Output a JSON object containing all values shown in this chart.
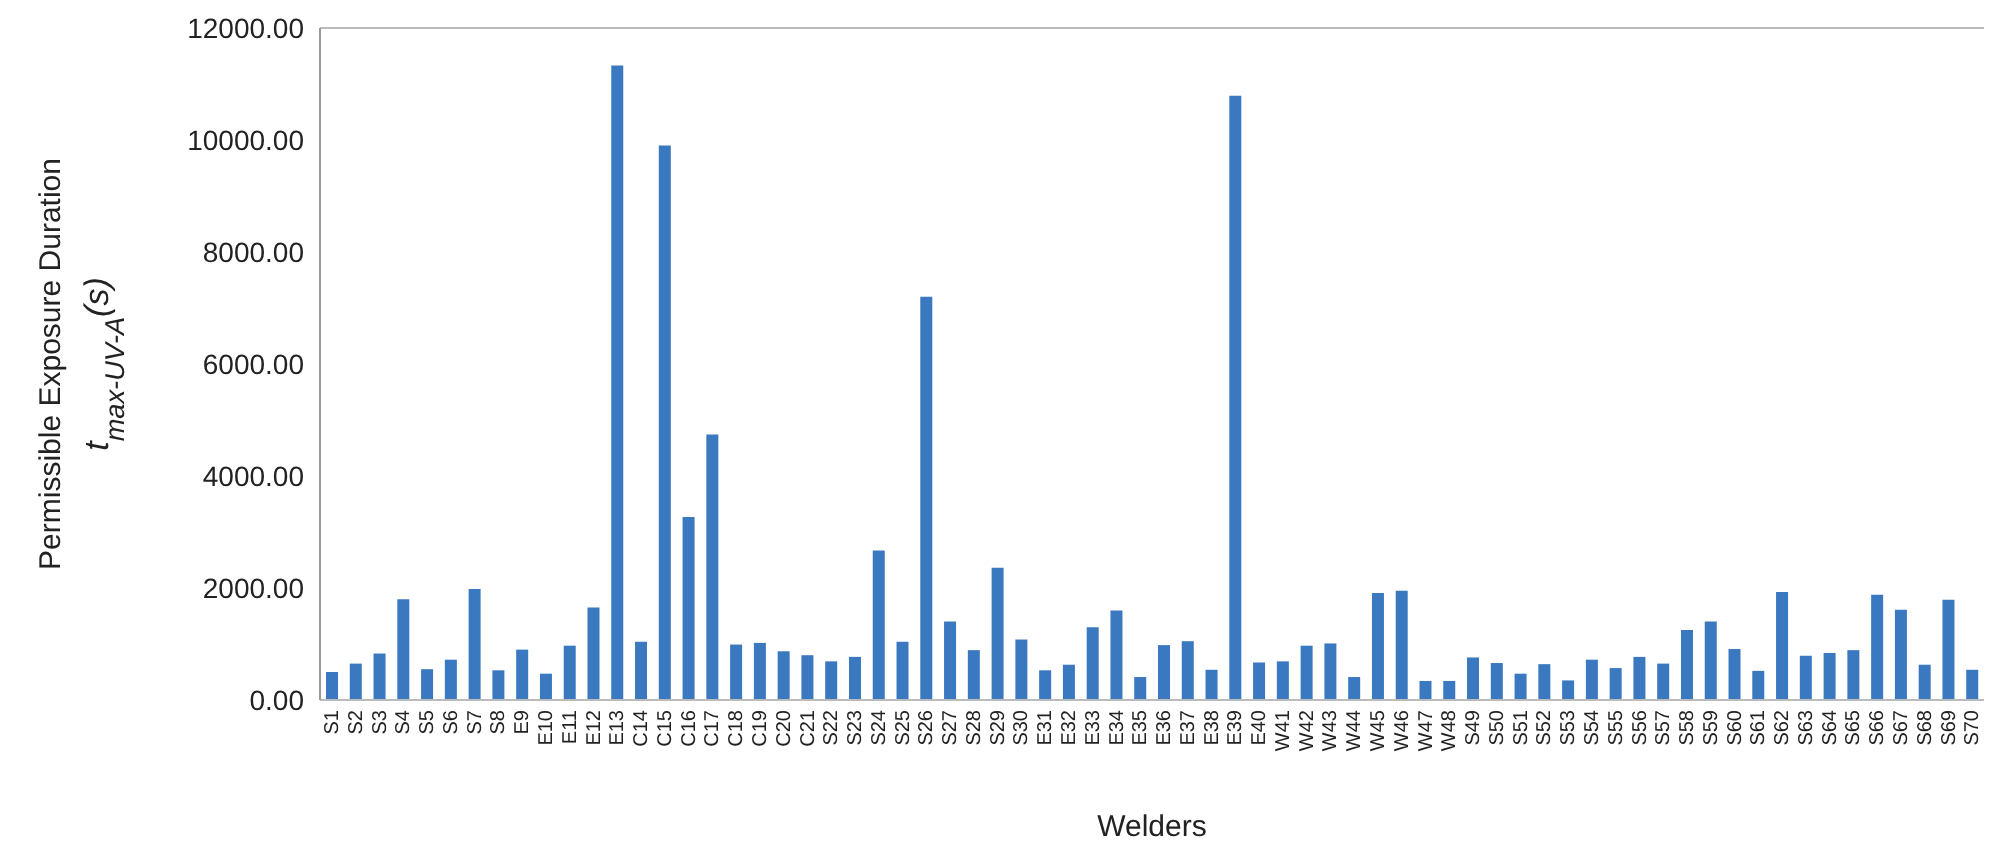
{
  "chart_data": {
    "type": "bar",
    "xlabel": "Welders",
    "ylabel": "Permissible Exposure Duration\nt$_{max-UV-A}$(s)",
    "categories": [
      "S1",
      "S2",
      "S3",
      "S4",
      "S5",
      "S6",
      "S7",
      "S8",
      "E9",
      "E10",
      "E11",
      "E12",
      "E13",
      "C14",
      "C15",
      "C16",
      "C17",
      "C18",
      "C19",
      "C20",
      "C21",
      "S22",
      "S23",
      "S24",
      "S25",
      "S26",
      "S27",
      "S28",
      "S29",
      "S30",
      "E31",
      "E32",
      "E33",
      "E34",
      "E35",
      "E36",
      "E37",
      "E38",
      "E39",
      "E40",
      "W41",
      "W42",
      "W43",
      "W44",
      "W45",
      "W46",
      "W47",
      "W48",
      "S49",
      "S50",
      "S51",
      "S52",
      "S53",
      "S54",
      "S55",
      "S56",
      "S57",
      "S58",
      "S59",
      "S60",
      "S61",
      "S62",
      "S63",
      "S64",
      "S65",
      "S66",
      "S67",
      "S68",
      "S69",
      "S70"
    ],
    "values": [
      500,
      650,
      830,
      1800,
      550,
      720,
      1980,
      530,
      900,
      470,
      970,
      1650,
      11330,
      1040,
      9900,
      3270,
      4740,
      990,
      1020,
      870,
      800,
      690,
      770,
      2670,
      1040,
      7200,
      1400,
      890,
      2360,
      1080,
      530,
      630,
      1300,
      1600,
      410,
      980,
      1050,
      540,
      10790,
      670,
      690,
      970,
      1010,
      410,
      1910,
      1950,
      340,
      340,
      760,
      660,
      470,
      640,
      350,
      720,
      570,
      770,
      650,
      1250,
      1400,
      910,
      520,
      1930,
      790,
      840,
      890,
      1880,
      1610,
      630,
      1790,
      540
    ],
    "color": "#3a78c0",
    "ylim": [
      0,
      12000
    ],
    "yticks": [
      {
        "value": 0,
        "label": "0.00"
      },
      {
        "value": 2000,
        "label": "2000.00"
      },
      {
        "value": 4000,
        "label": "4000.00"
      },
      {
        "value": 6000,
        "label": "6000.00"
      },
      {
        "value": 8000,
        "label": "8000.00"
      },
      {
        "value": 10000,
        "label": "10000.00"
      },
      {
        "value": 12000,
        "label": "12000.00"
      }
    ],
    "grid": false,
    "legend": false
  }
}
